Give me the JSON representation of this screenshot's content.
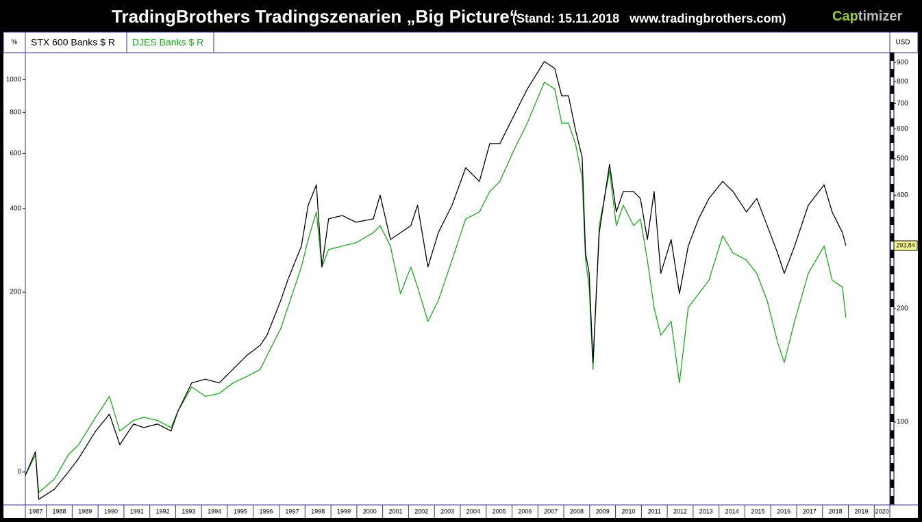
{
  "chart_data": {
    "type": "line",
    "title": "TradingBrothers Tradingszenarien „Big Picture“",
    "subtitle": "(Stand: 15.11.2018   www.tradingbrothers.com)",
    "brand": [
      "Cap",
      "timizer"
    ],
    "ylabel": "%",
    "y2label": "USD",
    "x": [
      1987.19,
      1987.58,
      1987.71,
      1988.32,
      1988.85,
      1989.25,
      1989.91,
      1990.44,
      1990.84,
      1991.37,
      1991.77,
      1992.3,
      1992.82,
      1993.09,
      1993.62,
      1994.15,
      1994.68,
      1995.21,
      1995.74,
      1996.27,
      1996.53,
      1997.06,
      1997.33,
      1997.86,
      1998.12,
      1998.44,
      1998.65,
      1998.91,
      1999.44,
      1999.97,
      2000.64,
      2000.9,
      2001.3,
      2001.69,
      2002.09,
      2002.35,
      2002.75,
      2003.15,
      2003.68,
      2004.21,
      2004.74,
      2005.14,
      2005.53,
      2006.06,
      2006.59,
      2007.25,
      2007.65,
      2007.92,
      2008.18,
      2008.45,
      2008.71,
      2008.84,
      2008.98,
      2009.13,
      2009.37,
      2009.77,
      2010.03,
      2010.3,
      2010.7,
      2010.96,
      2011.23,
      2011.49,
      2011.75,
      2012.15,
      2012.47,
      2012.81,
      2013.21,
      2013.61,
      2014.14,
      2014.54,
      2015.06,
      2015.46,
      2015.86,
      2016.26,
      2016.52,
      2016.92,
      2017.45,
      2018.06,
      2018.37,
      2018.77,
      2018.9
    ],
    "series": [
      {
        "name": "STX 600 Banks $ R",
        "color": "#000000",
        "axis": "y2",
        "values": [
          72.2,
          83.5,
          62.4,
          66.4,
          73.7,
          80.1,
          94.7,
          105,
          87.1,
          98.8,
          96.7,
          98.8,
          94.7,
          107,
          127,
          130,
          127,
          138,
          150,
          160,
          170,
          210,
          238,
          293,
          376,
          426,
          258,
          346,
          353,
          339,
          346,
          400,
          305,
          318,
          332,
          376,
          258,
          318,
          376,
          473,
          435,
          548,
          548,
          648,
          765,
          905,
          868,
          734,
          734,
          596,
          504,
          281,
          248,
          144,
          318,
          483,
          361,
          409,
          409,
          392,
          305,
          409,
          248,
          305,
          219,
          293,
          346,
          392,
          435,
          409,
          361,
          392,
          332,
          281,
          248,
          293,
          376,
          426,
          361,
          318,
          293.84
        ],
        "value_labels": [
          null,
          null,
          null,
          null,
          null,
          null,
          null,
          null,
          null,
          null,
          null,
          null,
          null,
          null,
          null,
          null,
          null,
          null,
          null,
          null,
          null,
          null,
          null,
          null,
          null,
          null,
          null,
          null,
          null,
          null,
          null,
          null,
          null,
          null,
          null,
          null,
          null,
          null,
          null,
          null,
          null,
          null,
          null,
          null,
          null,
          null,
          null,
          null,
          null,
          null,
          null,
          null,
          null,
          null,
          null,
          null,
          null,
          null,
          null,
          null,
          null,
          null,
          null,
          null,
          null,
          null,
          null,
          null,
          null,
          null,
          null,
          null,
          null,
          null,
          null,
          null,
          null,
          null,
          null,
          null,
          "293,84"
        ]
      },
      {
        "name": "DJES Banks $ R",
        "color": "#1aa81a",
        "axis": "y2",
        "values": [
          72.2,
          81.8,
          65.0,
          70.7,
          81.8,
          87.1,
          103,
          117,
          94.7,
          101,
          103,
          101,
          96.7,
          107,
          124,
          117,
          119,
          127,
          132,
          138,
          150,
          177,
          201,
          258,
          305,
          361,
          258,
          287,
          293,
          299,
          318,
          332,
          293,
          219,
          258,
          228,
          185,
          210,
          269,
          346,
          361,
          409,
          435,
          525,
          621,
          798,
          765,
          621,
          621,
          548,
          444,
          269,
          228,
          138,
          332,
          464,
          332,
          376,
          332,
          346,
          269,
          201,
          170,
          185,
          127,
          201,
          219,
          238,
          312,
          281,
          269,
          248,
          210,
          163,
          144,
          185,
          248,
          293,
          238,
          228,
          189
        ]
      }
    ],
    "xlim": [
      1987.19,
      2020.6
    ],
    "xticks": [
      1987,
      1988,
      1989,
      1990,
      1991,
      1992,
      1993,
      1994,
      1995,
      1996,
      1997,
      1998,
      1999,
      2000,
      2001,
      2002,
      2003,
      2004,
      2005,
      2006,
      2007,
      2008,
      2009,
      2010,
      2011,
      2012,
      2013,
      2014,
      2015,
      2016,
      2017,
      2018,
      2019,
      2020
    ],
    "ylim": [
      -18.2,
      1196
    ],
    "yscale": "log-percent",
    "yticks": [
      0,
      200,
      400,
      600,
      800,
      1000
    ],
    "y2lim": [
      60.3,
      955
    ],
    "y2scale": "log",
    "y2ticks": [
      100,
      200,
      400,
      500,
      600,
      700,
      800,
      900
    ]
  }
}
